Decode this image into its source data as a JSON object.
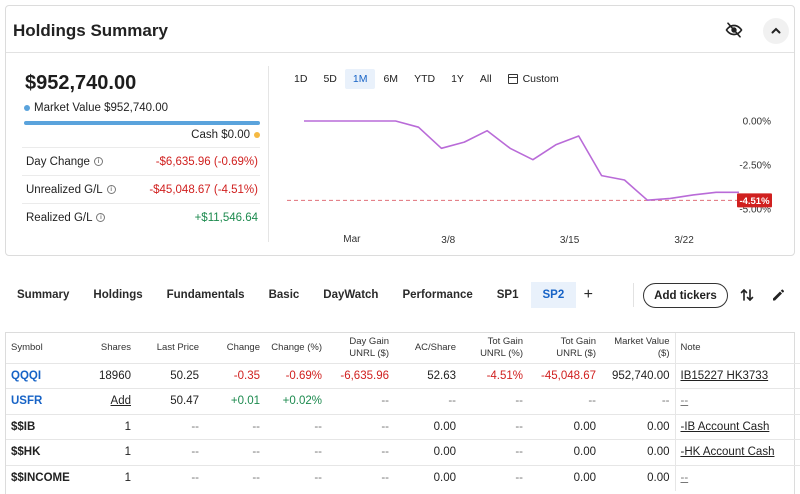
{
  "summary": {
    "title": "Holdings Summary",
    "total_value": "$952,740.00",
    "market_value_label": "Market Value $952,740.00",
    "cash_label": "Cash $0.00",
    "stats": [
      {
        "label": "Day Change",
        "value": "-$6,635.96 (-0.69%)",
        "tone": "neg",
        "info": true
      },
      {
        "label": "Unrealized G/L",
        "value": "-$45,048.67 (-4.51%)",
        "tone": "neg",
        "info": true
      },
      {
        "label": "Realized G/L",
        "value": "+$11,546.64",
        "tone": "pos",
        "info": true
      }
    ],
    "colors": {
      "market_value_dot": "#5aa3dc",
      "cash_dot": "#f5b942",
      "negative": "#d0201f",
      "positive": "#1c8a4e",
      "line": "#b96bd8"
    }
  },
  "ranges": [
    "1D",
    "5D",
    "1M",
    "6M",
    "YTD",
    "1Y",
    "All"
  ],
  "active_range": "1M",
  "custom_label": "Custom",
  "chart_data": {
    "type": "line",
    "series": [
      {
        "name": "Portfolio return (%)",
        "values": [
          0,
          0,
          0,
          0,
          0,
          -0.35,
          -1.55,
          -1.2,
          -0.55,
          -1.55,
          -2.2,
          -1.35,
          -0.85,
          -3.1,
          -3.35,
          -4.5,
          -4.4,
          -4.2,
          -4.05,
          -4.05
        ]
      }
    ],
    "x_ticks": [
      {
        "label": "Mar",
        "index": 1
      },
      {
        "label": "3/8",
        "index": 6.3
      },
      {
        "label": "3/15",
        "index": 11.6
      },
      {
        "label": "3/22",
        "index": 16.6
      }
    ],
    "y_ticks": [
      "0.00%",
      "-2.50%",
      "-5.00%"
    ],
    "ylim": [
      -5.0,
      0.0
    ],
    "current_label": "-4.51%",
    "current_value": -4.51
  },
  "tabs": [
    "Summary",
    "Holdings",
    "Fundamentals",
    "Basic",
    "DayWatch",
    "Performance",
    "SP1",
    "SP2"
  ],
  "active_tab": "SP2",
  "add_tab_label": "+",
  "add_tickers_label": "Add tickers",
  "table": {
    "columns": {
      "symbol": "Symbol",
      "shares": "Shares",
      "last_price": "Last Price",
      "change": "Change",
      "change_pct": "Change (%)",
      "day_gain_1": "Day Gain",
      "day_gain_2": "UNRL ($)",
      "ac_share": "AC/Share",
      "tot_gain_pct_1": "Tot Gain",
      "tot_gain_pct_2": "UNRL (%)",
      "tot_gain_1": "Tot Gain",
      "tot_gain_2": "UNRL ($)",
      "mv_1": "Market Value",
      "mv_2": "($)",
      "note": "Note"
    },
    "rows": [
      {
        "symbol": "QQQI",
        "shares": "18960",
        "last_price": "50.25",
        "change": "-0.35",
        "change_pct": "-0.69%",
        "day_gain": "-6,635.96",
        "ac_share": "52.63",
        "tot_gain_pct": "-4.51%",
        "tot_gain": "-45,048.67",
        "market_value": "952,740.00",
        "note": "IB15227 HK3733"
      },
      {
        "symbol": "USFR",
        "shares": "Add",
        "last_price": "50.47",
        "change": "+0.01",
        "change_pct": "+0.02%",
        "day_gain": "--",
        "ac_share": "--",
        "tot_gain_pct": "--",
        "tot_gain": "--",
        "market_value": "--",
        "note": "--"
      },
      {
        "symbol": "$$IB",
        "shares": "1",
        "last_price": "--",
        "change": "--",
        "change_pct": "--",
        "day_gain": "--",
        "ac_share": "0.00",
        "tot_gain_pct": "--",
        "tot_gain": "0.00",
        "market_value": "0.00",
        "note": "-IB Account Cash"
      },
      {
        "symbol": "$$HK",
        "shares": "1",
        "last_price": "--",
        "change": "--",
        "change_pct": "--",
        "day_gain": "--",
        "ac_share": "0.00",
        "tot_gain_pct": "--",
        "tot_gain": "0.00",
        "market_value": "0.00",
        "note": "-HK Account Cash"
      },
      {
        "symbol": "$$INCOME",
        "shares": "1",
        "last_price": "--",
        "change": "--",
        "change_pct": "--",
        "day_gain": "--",
        "ac_share": "0.00",
        "tot_gain_pct": "--",
        "tot_gain": "0.00",
        "market_value": "0.00",
        "note": "--"
      }
    ]
  }
}
